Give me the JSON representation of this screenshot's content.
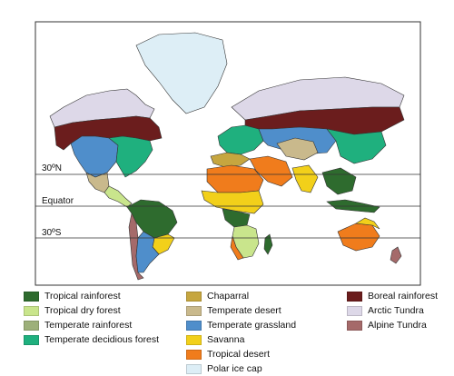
{
  "map": {
    "lines": {
      "north": "30ºN",
      "equator": "Equator",
      "south": "30ºS"
    }
  },
  "legend": {
    "columns": [
      [
        {
          "label": "Tropical rainforest",
          "color": "#2e6b2e"
        },
        {
          "label": "Tropical dry forest",
          "color": "#c9e58c"
        },
        {
          "label": "Temperate rainforest",
          "color": "#9db07a"
        },
        {
          "label": "Temperate decidious forest",
          "color": "#1fb07e"
        }
      ],
      [
        {
          "label": "Chaparral",
          "color": "#c6a63f"
        },
        {
          "label": "Temperate desert",
          "color": "#c9b98c"
        },
        {
          "label": "Temperate grassland",
          "color": "#4f8ecb"
        },
        {
          "label": "Savanna",
          "color": "#f2d01a"
        },
        {
          "label": "Tropical desert",
          "color": "#f07c1c"
        },
        {
          "label": "Polar ice cap",
          "color": "#ddeef6"
        }
      ],
      [
        {
          "label": "Boreal rainforest",
          "color": "#6b1d1d"
        },
        {
          "label": "Arctic Tundra",
          "color": "#ddd8e8"
        },
        {
          "label": "Alpine Tundra",
          "color": "#a56a6a"
        }
      ]
    ]
  }
}
